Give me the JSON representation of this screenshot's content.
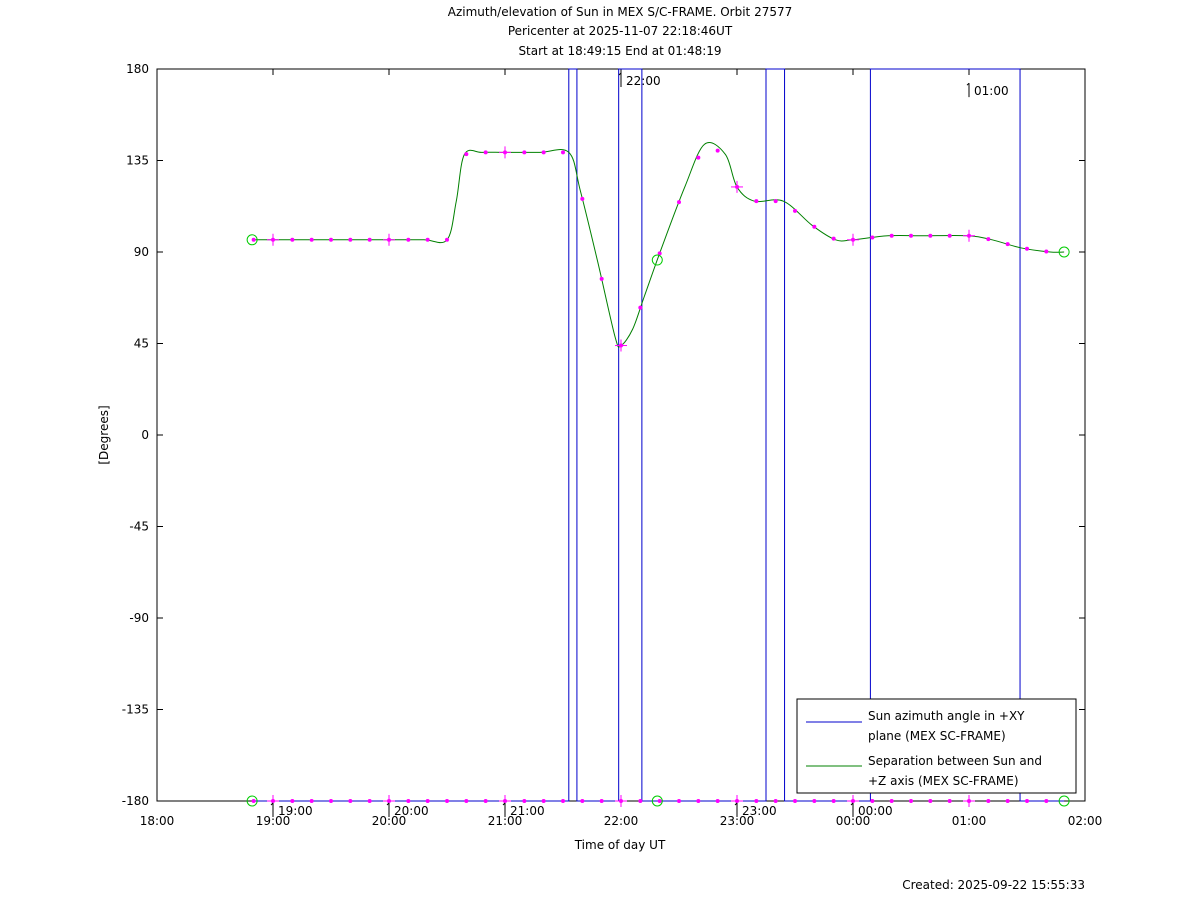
{
  "chart_data": {
    "type": "line",
    "title_lines": [
      "Azimuth/elevation of Sun in MEX S/C-FRAME.  Orbit 27577",
      "Pericenter at 2025-11-07 22:18:46UT",
      "Start at 18:49:15 End at 01:48:19"
    ],
    "xlabel": "Time of day UT",
    "ylabel": "[Degrees]",
    "created": "Created: 2025-09-22 15:55:33",
    "xlim": [
      18.0,
      26.0
    ],
    "ylim": [
      -180,
      180
    ],
    "x_ticks": [
      {
        "v": 18,
        "label": "18:00"
      },
      {
        "v": 19,
        "label": "19:00"
      },
      {
        "v": 20,
        "label": "20:00"
      },
      {
        "v": 21,
        "label": "21:00"
      },
      {
        "v": 22,
        "label": "22:00"
      },
      {
        "v": 23,
        "label": "23:00"
      },
      {
        "v": 24,
        "label": "00:00"
      },
      {
        "v": 25,
        "label": "01:00"
      },
      {
        "v": 26,
        "label": "02:00"
      }
    ],
    "y_ticks": [
      {
        "v": 180,
        "label": "180"
      },
      {
        "v": 135,
        "label": "135"
      },
      {
        "v": 90,
        "label": "90"
      },
      {
        "v": 45,
        "label": "45"
      },
      {
        "v": 0,
        "label": "0"
      },
      {
        "v": -45,
        "label": "-45"
      },
      {
        "v": -90,
        "label": "-90"
      },
      {
        "v": -135,
        "label": "-135"
      },
      {
        "v": -180,
        "label": "-180"
      }
    ],
    "annotations": [
      {
        "x": 19.0,
        "y": -180,
        "label": "19:00"
      },
      {
        "x": 20.0,
        "y": -180,
        "label": "20:00"
      },
      {
        "x": 21.0,
        "y": -180,
        "label": "21:00"
      },
      {
        "x": 22.0,
        "y": 180,
        "label": "22:00"
      },
      {
        "x": 23.0,
        "y": -180,
        "label": "23:00"
      },
      {
        "x": 24.0,
        "y": -180,
        "label": "00:00"
      },
      {
        "x": 25.0,
        "y": 175,
        "label": "01:00"
      }
    ],
    "legend_position": "bottom-right",
    "series": [
      {
        "name": "Sun azimuth angle in +XY plane (MEX SC-FRAME)",
        "legend_lines": [
          "Sun azimuth angle in +XY",
          "plane (MEX SC-FRAME)"
        ],
        "color": "#0000cc",
        "x": [
          18.82,
          21.55,
          21.55,
          21.62,
          21.62,
          21.98,
          21.98,
          22.18,
          22.18,
          23.25,
          23.25,
          23.41,
          23.41,
          24.15,
          24.15,
          25.44,
          25.44,
          25.82
        ],
        "y": [
          -180,
          -180,
          180,
          180,
          -180,
          -180,
          180,
          180,
          -180,
          -180,
          180,
          180,
          -180,
          -180,
          180,
          180,
          -180,
          -180
        ]
      },
      {
        "name": "Separation between Sun and +Z axis (MEX SC-FRAME)",
        "legend_lines": [
          "Separation between Sun and",
          "+Z axis (MEX SC-FRAME)"
        ],
        "color": "#008000",
        "x": [
          18.82,
          19.0,
          19.5,
          20.0,
          20.3,
          20.5,
          20.58,
          20.65,
          20.8,
          21.0,
          21.3,
          21.55,
          21.65,
          21.8,
          21.95,
          22.0,
          22.1,
          22.2,
          22.35,
          22.55,
          22.72,
          22.9,
          23.0,
          23.15,
          23.4,
          23.65,
          23.85,
          24.0,
          24.3,
          24.6,
          25.0,
          25.2,
          25.45,
          25.7,
          25.82
        ],
        "y": [
          96,
          96,
          96,
          96,
          96,
          96,
          115,
          138,
          139,
          139,
          139,
          139,
          120,
          85,
          48,
          44,
          52,
          68,
          92,
          122,
          143,
          138,
          122,
          115,
          115,
          103,
          96,
          96,
          98,
          98,
          98,
          96,
          92,
          90,
          90
        ]
      }
    ]
  }
}
